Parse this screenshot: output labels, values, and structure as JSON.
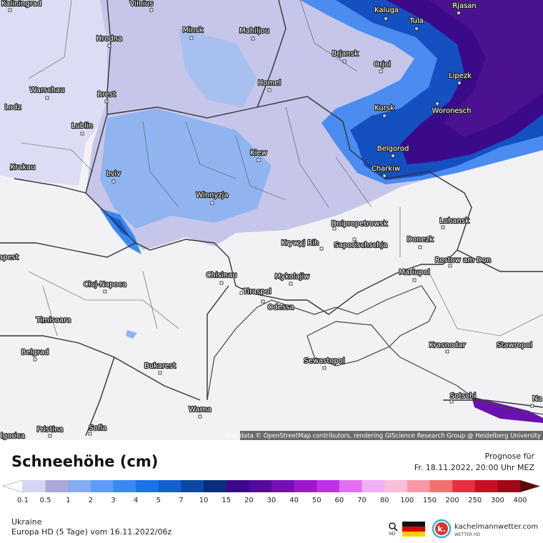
{
  "map": {
    "cities": [
      "Kaliningrad",
      "Vilnius",
      "Kaluga",
      "Tula",
      "Rjasan",
      "Hrodna",
      "Minsk",
      "Mahiljou",
      "Brjansk",
      "Orjol",
      "Lipezk",
      "Warschau",
      "Brest",
      "Homel",
      "Lodz",
      "Kursk",
      "Woronesch",
      "Lublin",
      "Belgorod",
      "Kiew",
      "Krakau",
      "Lviv",
      "Charkiw",
      "Winnyzja",
      "Dnipropetrowsk",
      "Luhansk",
      "Krywyj Rih",
      "Saporischschja",
      "Donezk",
      "apest",
      "Chisinau",
      "Rostow am Don",
      "Mykolajiw",
      "Mariupol",
      "Cluj-Napoca",
      "Tiraspol",
      "Odessa",
      "Timisoara",
      "Krasnodar",
      "Stawropol",
      "Belgrad",
      "Sewastopol",
      "Bukarest",
      "Sotschi",
      "Na",
      "Warna",
      "Pristina",
      "Sofia",
      "lgorica"
    ],
    "attribution": "Map data © OpenStreetMap contributors, rendering GIScience Research Group @ Heidelberg University"
  },
  "legend": {
    "title": "Schneehöhe (cm)",
    "forecast_label": "Prognose für",
    "forecast_time": "Fr. 18.11.2022, 20:00 Uhr MEZ",
    "ticks": [
      "0.1",
      "0.5",
      "1",
      "2",
      "3",
      "4",
      "5",
      "7",
      "10",
      "15",
      "20",
      "30",
      "40",
      "50",
      "60",
      "70",
      "80",
      "100",
      "150",
      "200",
      "250",
      "300",
      "400"
    ],
    "colors": [
      "#d4d4f4",
      "#aaaad8",
      "#84acf0",
      "#5c9cf6",
      "#3a88f4",
      "#1c72ea",
      "#1460cc",
      "#0c48a4",
      "#0a2e7c",
      "#3a0888",
      "#560a9c",
      "#7410b4",
      "#9c18cc",
      "#c030e4",
      "#e070f0",
      "#f0b0f8",
      "#f8c0d8",
      "#f898a8",
      "#f07070",
      "#e83040",
      "#c81020",
      "#a00818"
    ],
    "under_color": "#ffffff",
    "over_color": "#5a0a0a"
  },
  "footer": {
    "region": "Ukraine",
    "model": "Europa HD (5 Tage) vom  16.11.2022/06z",
    "hd": "HD",
    "logo_letter": "k.",
    "site": "kachelmannwetter.com",
    "site_sub": "WETTER HD"
  }
}
